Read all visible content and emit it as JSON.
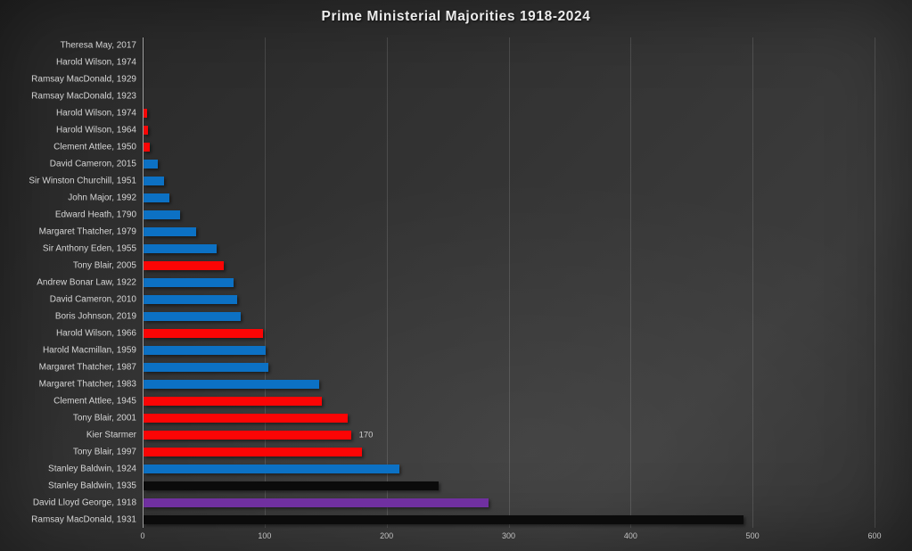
{
  "chart_data": {
    "type": "bar",
    "orientation": "horizontal",
    "title": "Prime Ministerial Majorities 1918-2024",
    "xlabel": "",
    "ylabel": "",
    "xlim": [
      0,
      600
    ],
    "x_ticks": [
      "0",
      "100",
      "200",
      "300",
      "400",
      "500",
      "600"
    ],
    "x_tick_values": [
      0,
      100,
      200,
      300,
      400,
      500,
      600
    ],
    "grid": true,
    "legend": "none",
    "colors": {
      "labour": "#fb0505",
      "conservative": "#0c71c4",
      "coalition_liberal": "#7030a0",
      "national": "#0b0b0b"
    },
    "bars": [
      {
        "label": "Theresa May, 2017",
        "value": 0,
        "color_key": "conservative"
      },
      {
        "label": "Harold Wilson, 1974",
        "value": 0,
        "color_key": "labour"
      },
      {
        "label": "Ramsay MacDonald, 1929",
        "value": 0,
        "color_key": "labour"
      },
      {
        "label": "Ramsay MacDonald, 1923",
        "value": 0,
        "color_key": "labour"
      },
      {
        "label": "Harold Wilson, 1974",
        "value": 3,
        "color_key": "labour"
      },
      {
        "label": "Harold Wilson, 1964",
        "value": 4,
        "color_key": "labour"
      },
      {
        "label": "Clement Attlee, 1950",
        "value": 5,
        "color_key": "labour"
      },
      {
        "label": "David Cameron, 2015",
        "value": 12,
        "color_key": "conservative"
      },
      {
        "label": "Sir Winston Churchill, 1951",
        "value": 17,
        "color_key": "conservative"
      },
      {
        "label": "John Major, 1992",
        "value": 21,
        "color_key": "conservative"
      },
      {
        "label": "Edward Heath, 1790",
        "value": 30,
        "color_key": "conservative"
      },
      {
        "label": "Margaret Thatcher, 1979",
        "value": 43,
        "color_key": "conservative"
      },
      {
        "label": "Sir Anthony Eden, 1955",
        "value": 60,
        "color_key": "conservative"
      },
      {
        "label": "Tony Blair, 2005",
        "value": 66,
        "color_key": "labour"
      },
      {
        "label": "Andrew Bonar Law, 1922",
        "value": 74,
        "color_key": "conservative"
      },
      {
        "label": "David Cameron, 2010",
        "value": 77,
        "color_key": "conservative"
      },
      {
        "label": "Boris Johnson, 2019",
        "value": 80,
        "color_key": "conservative"
      },
      {
        "label": "Harold Wilson, 1966",
        "value": 98,
        "color_key": "labour"
      },
      {
        "label": "Harold Macmillan, 1959",
        "value": 100,
        "color_key": "conservative"
      },
      {
        "label": "Margaret Thatcher, 1987",
        "value": 102,
        "color_key": "conservative"
      },
      {
        "label": "Margaret Thatcher, 1983",
        "value": 144,
        "color_key": "conservative"
      },
      {
        "label": "Clement Attlee, 1945",
        "value": 146,
        "color_key": "labour"
      },
      {
        "label": "Tony Blair, 2001",
        "value": 167,
        "color_key": "labour"
      },
      {
        "label": "Kier Starmer",
        "value": 170,
        "color_key": "labour",
        "data_label": "170"
      },
      {
        "label": "Tony Blair, 1997",
        "value": 179,
        "color_key": "labour"
      },
      {
        "label": "Stanley Baldwin, 1924",
        "value": 210,
        "color_key": "conservative"
      },
      {
        "label": "Stanley Baldwin, 1935",
        "value": 242,
        "color_key": "national"
      },
      {
        "label": "David Lloyd George, 1918",
        "value": 283,
        "color_key": "coalition_liberal"
      },
      {
        "label": "Ramsay MacDonald, 1931",
        "value": 492,
        "color_key": "national"
      }
    ]
  }
}
